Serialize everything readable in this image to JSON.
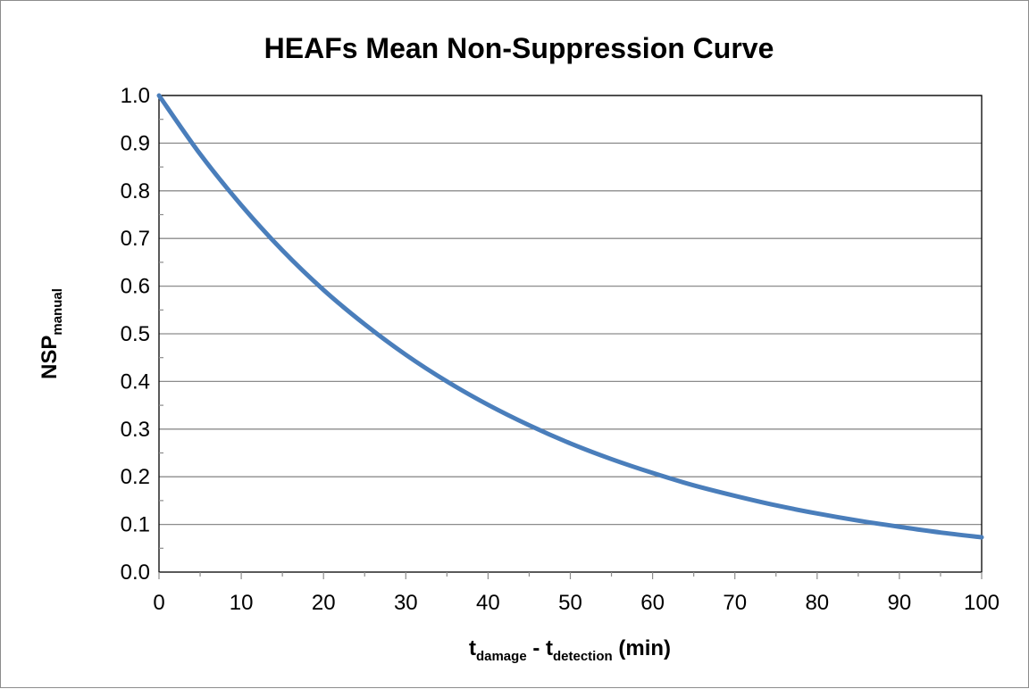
{
  "chart_data": {
    "type": "line",
    "title": "HEAFs Mean Non-Suppression Curve",
    "xlabel": {
      "parts": [
        {
          "text": "t",
          "sub": false
        },
        {
          "text": "damage",
          "sub": true
        },
        {
          "text": " - t",
          "sub": false
        },
        {
          "text": "detection",
          "sub": true
        },
        {
          "text": " (min)",
          "sub": false
        }
      ]
    },
    "ylabel": {
      "parts": [
        {
          "text": "NSP",
          "sub": false
        },
        {
          "text": "manual",
          "sub": true
        }
      ]
    },
    "xlim": [
      0,
      100
    ],
    "ylim": [
      0,
      1.0
    ],
    "xticks": [
      0,
      10,
      20,
      30,
      40,
      50,
      60,
      70,
      80,
      90,
      100
    ],
    "xtick_labels": [
      "0",
      "10",
      "20",
      "30",
      "40",
      "50",
      "60",
      "70",
      "80",
      "90",
      "100"
    ],
    "yticks": [
      0.0,
      0.1,
      0.2,
      0.3,
      0.4,
      0.5,
      0.6,
      0.7,
      0.8,
      0.9,
      1.0
    ],
    "ytick_labels": [
      "0.0",
      "0.1",
      "0.2",
      "0.3",
      "0.4",
      "0.5",
      "0.6",
      "0.7",
      "0.8",
      "0.9",
      "1.0"
    ],
    "grid": {
      "horizontal": true,
      "vertical": false
    },
    "series": [
      {
        "color": "#4a7ebb",
        "x": [
          0,
          5,
          10,
          15,
          20,
          25,
          30,
          35,
          40,
          45,
          50,
          55,
          60,
          65,
          70,
          75,
          80,
          85,
          90,
          95,
          100
        ],
        "y": [
          1.0,
          0.877,
          0.77,
          0.675,
          0.592,
          0.52,
          0.456,
          0.4,
          0.351,
          0.308,
          0.27,
          0.237,
          0.208,
          0.182,
          0.16,
          0.14,
          0.123,
          0.108,
          0.095,
          0.083,
          0.073
        ]
      }
    ]
  }
}
